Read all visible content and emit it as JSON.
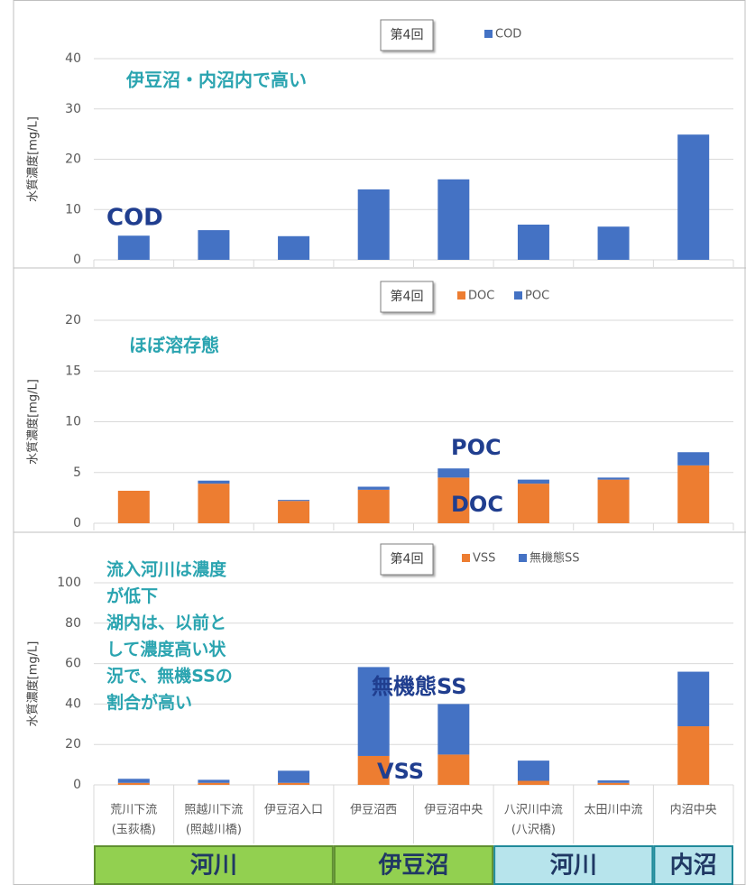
{
  "chart_data": [
    {
      "type": "bar",
      "ylabel": "水質濃度[mg/L]",
      "box_label": "第4回",
      "series": [
        {
          "name": "COD",
          "color": "#4472c4",
          "values": [
            4.8,
            5.9,
            4.7,
            14.0,
            16.0,
            7.0,
            6.6,
            24.9
          ]
        }
      ],
      "ylim": [
        0,
        40
      ],
      "yticks": [
        0,
        10,
        20,
        30,
        40
      ],
      "grid": true,
      "annotations": [
        {
          "lines": [
            "伊豆沼・内沼内で高い"
          ],
          "color": "#2aa4b0"
        },
        {
          "lines": [
            "COD"
          ],
          "color": "#203e8f"
        }
      ]
    },
    {
      "type": "stacked_bar",
      "ylabel": "水質濃度[mg/L]",
      "box_label": "第4回",
      "series": [
        {
          "name": "DOC",
          "color": "#ed7d31",
          "values": [
            3.2,
            3.9,
            2.2,
            3.3,
            4.5,
            3.9,
            4.3,
            5.7
          ]
        },
        {
          "name": "POC",
          "color": "#4472c4",
          "values": [
            0,
            0.3,
            0.1,
            0.3,
            0.9,
            0.4,
            0.2,
            1.3
          ]
        }
      ],
      "ylim": [
        0,
        20
      ],
      "yticks": [
        0,
        5,
        10,
        15,
        20
      ],
      "grid": true,
      "annotations": [
        {
          "lines": [
            "ほぼ溶存態"
          ],
          "color": "#2aa4b0"
        },
        {
          "lines": [
            "POC"
          ],
          "color": "#203e8f"
        },
        {
          "lines": [
            "DOC"
          ],
          "color": "#203e8f"
        }
      ]
    },
    {
      "type": "stacked_bar",
      "ylabel": "水質濃度[mg/L]",
      "box_label": "第4回",
      "categories": [
        [
          "荒川下流",
          "(玉荻橋)"
        ],
        [
          "照越川下流",
          "(照越川橋)"
        ],
        [
          "伊豆沼入口"
        ],
        [
          "伊豆沼西"
        ],
        [
          "伊豆沼中央"
        ],
        [
          "八沢川中流",
          "(八沢橋)"
        ],
        [
          "太田川中流"
        ],
        [
          "内沼中央"
        ]
      ],
      "series": [
        {
          "name": "VSS",
          "color": "#ed7d31",
          "values": [
            1,
            1,
            1,
            14.3,
            15,
            2,
            1,
            29
          ]
        },
        {
          "name": "無機態SS",
          "color": "#4472c4",
          "values": [
            2,
            1.5,
            6,
            44,
            25,
            10,
            1.2,
            27
          ]
        }
      ],
      "ylim": [
        0,
        100
      ],
      "yticks": [
        0,
        20,
        40,
        60,
        80,
        100
      ],
      "grid": true,
      "annotations": [
        {
          "lines": [
            "流入河川は濃度",
            "が低下",
            "湖内は、以前と",
            "して濃度高い状",
            "況で、無機SSの",
            "割合が高い"
          ],
          "color": "#2aa4b0"
        },
        {
          "lines": [
            "無機態SS"
          ],
          "color": "#203e8f"
        },
        {
          "lines": [
            "VSS"
          ],
          "color": "#203e8f"
        }
      ],
      "groups": [
        {
          "label": "河川",
          "span": 3,
          "color": "#92d050",
          "border": "#5f8f30"
        },
        {
          "label": "伊豆沼",
          "span": 2,
          "color": "#92d050",
          "border": "#5f8f30"
        },
        {
          "label": "河川",
          "span": 2,
          "color": "#b7e4ec",
          "border": "#1f8a9a"
        },
        {
          "label": "内沼",
          "span": 1,
          "color": "#b7e4ec",
          "border": "#1f8a9a"
        }
      ]
    }
  ]
}
